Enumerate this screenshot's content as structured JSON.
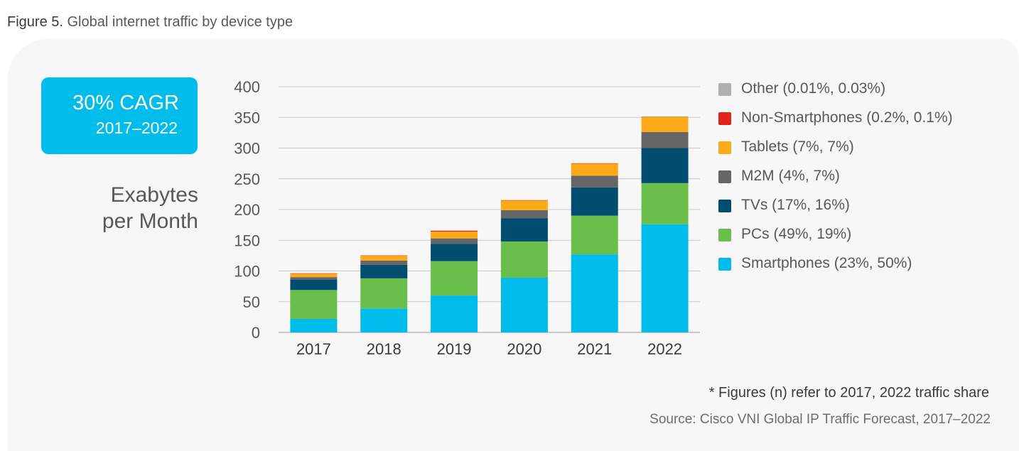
{
  "figure": {
    "number": "Figure 5.",
    "title": "Global internet traffic by device type"
  },
  "callout": {
    "main": "30% CAGR",
    "sub": "2017–2022"
  },
  "note": "* Figures (n) refer to 2017, 2022 traffic share",
  "source": "Source: Cisco VNI Global IP Traffic Forecast, 2017–2022",
  "chart_data": {
    "type": "bar",
    "stacked": true,
    "ylabel": "Exabytes per Month",
    "ylabel_lines": [
      "Exabytes",
      "per Month"
    ],
    "ylim": [
      0,
      400
    ],
    "yticks": [
      0,
      50,
      100,
      150,
      200,
      250,
      300,
      350,
      400
    ],
    "grid": true,
    "legend_position": "right",
    "categories": [
      "2017",
      "2018",
      "2019",
      "2020",
      "2021",
      "2022"
    ],
    "series": [
      {
        "name": "Smartphones (23%, 50%)",
        "color": "#00bceb",
        "values": [
          22,
          39,
          60,
          89,
          127,
          176
        ]
      },
      {
        "name": "PCs (49%, 19%)",
        "color": "#6abf4b",
        "values": [
          47,
          49,
          56,
          59,
          63,
          67
        ]
      },
      {
        "name": "TVs (17%, 16%)",
        "color": "#004d70",
        "values": [
          17,
          22,
          28,
          38,
          46,
          57
        ]
      },
      {
        "name": "M2M (4%, 7%)",
        "color": "#666666",
        "values": [
          4,
          7,
          9,
          13,
          19,
          26
        ]
      },
      {
        "name": "Tablets (7%, 7%)",
        "color": "#fbab18",
        "values": [
          6,
          8,
          11,
          16,
          20,
          25
        ]
      },
      {
        "name": "Non-Smartphones (0.2%, 0.1%)",
        "color": "#e2231a",
        "values": [
          0.2,
          0.3,
          1.5,
          0.3,
          0.3,
          0.3
        ]
      },
      {
        "name": "Other (0.01%, 0.03%)",
        "color": "#b0b0b0",
        "values": [
          0,
          0,
          0,
          0,
          0,
          0.1
        ]
      }
    ],
    "legend_order": [
      6,
      5,
      4,
      3,
      2,
      1,
      0
    ]
  }
}
